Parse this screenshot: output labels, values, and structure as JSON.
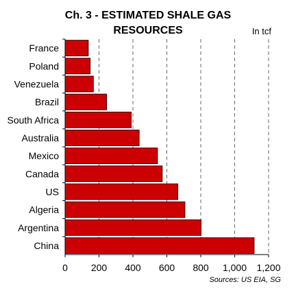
{
  "chart_data": {
    "type": "bar",
    "orientation": "horizontal",
    "title_line_1": "Ch. 3 - ESTIMATED SHALE GAS",
    "title_line_2": "RESOURCES",
    "units_label": "In tcf",
    "source_note": "Sources: US EIA, SG",
    "categories": [
      "France",
      "Poland",
      "Venezuela",
      "Brazil",
      "South Africa",
      "Australia",
      "Mexico",
      "Canada",
      "US",
      "Algeria",
      "Argentina",
      "China"
    ],
    "values": [
      137,
      148,
      167,
      245,
      390,
      437,
      545,
      573,
      665,
      707,
      802,
      1115
    ],
    "xlim": [
      0,
      1200
    ],
    "x_ticks": [
      0,
      200,
      400,
      600,
      800,
      1000,
      1200
    ],
    "x_tick_labels": [
      "0",
      "200",
      "400",
      "600",
      "800",
      "1,000",
      "1,200"
    ],
    "grid": "vertical dashed",
    "bar_color": "#cc0000"
  }
}
